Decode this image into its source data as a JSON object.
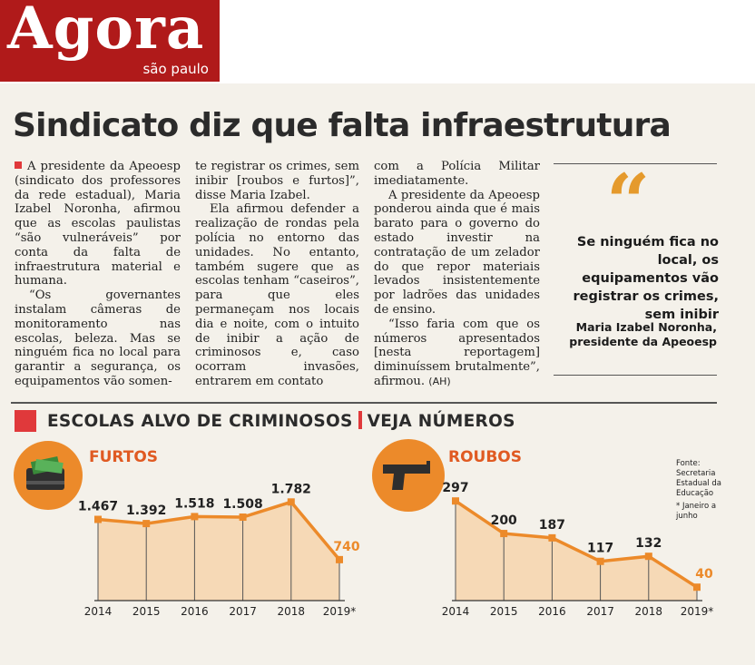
{
  "logo": {
    "title": "Agora",
    "subtitle": "são paulo"
  },
  "headline": "Sindicato diz que falta infraestrutura",
  "article": {
    "col1": [
      "A presidente da Apeoesp (sindicato dos professores da rede estadual), Maria Izabel Noronha, afirmou que as escolas paulistas “são vulneráveis” por conta da falta de infraestrutura material e humana.",
      "“Os governantes instalam câmeras de monitoramento nas escolas, beleza. Mas se ninguém fica no local para garantir a segurança, os equipamentos vão somen-"
    ],
    "col2": [
      "te registrar os crimes, sem inibir [roubos e furtos]”, disse Maria Izabel.",
      "Ela afirmou defender a realização de rondas pela polícia no entorno das unidades. No entanto, também sugere que as escolas tenham “caseiros”, para que eles permaneçam nos locais dia e noite, com o intuito de inibir a ação de criminosos e, caso ocorram invasões, entrarem em contato"
    ],
    "col3": [
      "com a Polícia Militar imediatamente.",
      "A presidente da Apeoesp ponderou ainda que é mais barato para o governo do estado investir na contratação de um zelador do que repor materiais levados insistentemente por ladrões das unidades de ensino.",
      "“Isso faria com que os números apresentados [nesta reportagem] diminuíssem brutalmente”, afirmou."
    ],
    "author_tag": "(AH)"
  },
  "quote": {
    "mark": "“",
    "text": "Se ninguém fica no local, os equipamentos vão registrar os crimes, sem inibir",
    "author": "Maria Izabel Noronha,",
    "author_role": "presidente da Apeoesp"
  },
  "section": {
    "title": "ESCOLAS ALVO DE CRIMINOSOS",
    "subtitle": "VEJA NÚMEROS"
  },
  "notes": {
    "source": "Fonte: Secretaria Estadual da Educação",
    "footnote": "* Janeiro a junho"
  },
  "colors": {
    "accent_red": "#e0393b",
    "accent_orange": "#ec8a2a",
    "area_fill": "#f6d9b6",
    "brand_red": "#b01a1a"
  },
  "icons": {
    "furtos": "cash-box-icon",
    "roubos": "pistol-icon"
  },
  "chart_data": [
    {
      "type": "area",
      "title": "FURTOS",
      "categories": [
        "2014",
        "2015",
        "2016",
        "2017",
        "2018",
        "2019*"
      ],
      "values": [
        1467,
        1392,
        1518,
        1508,
        1782,
        740
      ],
      "value_labels": [
        "1.467",
        "1.392",
        "1.518",
        "1.508",
        "1.782",
        "740"
      ],
      "ylim": [
        0,
        2000
      ],
      "grid": false
    },
    {
      "type": "area",
      "title": "ROUBOS",
      "categories": [
        "2014",
        "2015",
        "2016",
        "2017",
        "2018",
        "2019*"
      ],
      "values": [
        297,
        200,
        187,
        117,
        132,
        40
      ],
      "value_labels": [
        "297",
        "200",
        "187",
        "117",
        "132",
        "40"
      ],
      "ylim": [
        0,
        330
      ],
      "grid": false
    }
  ]
}
